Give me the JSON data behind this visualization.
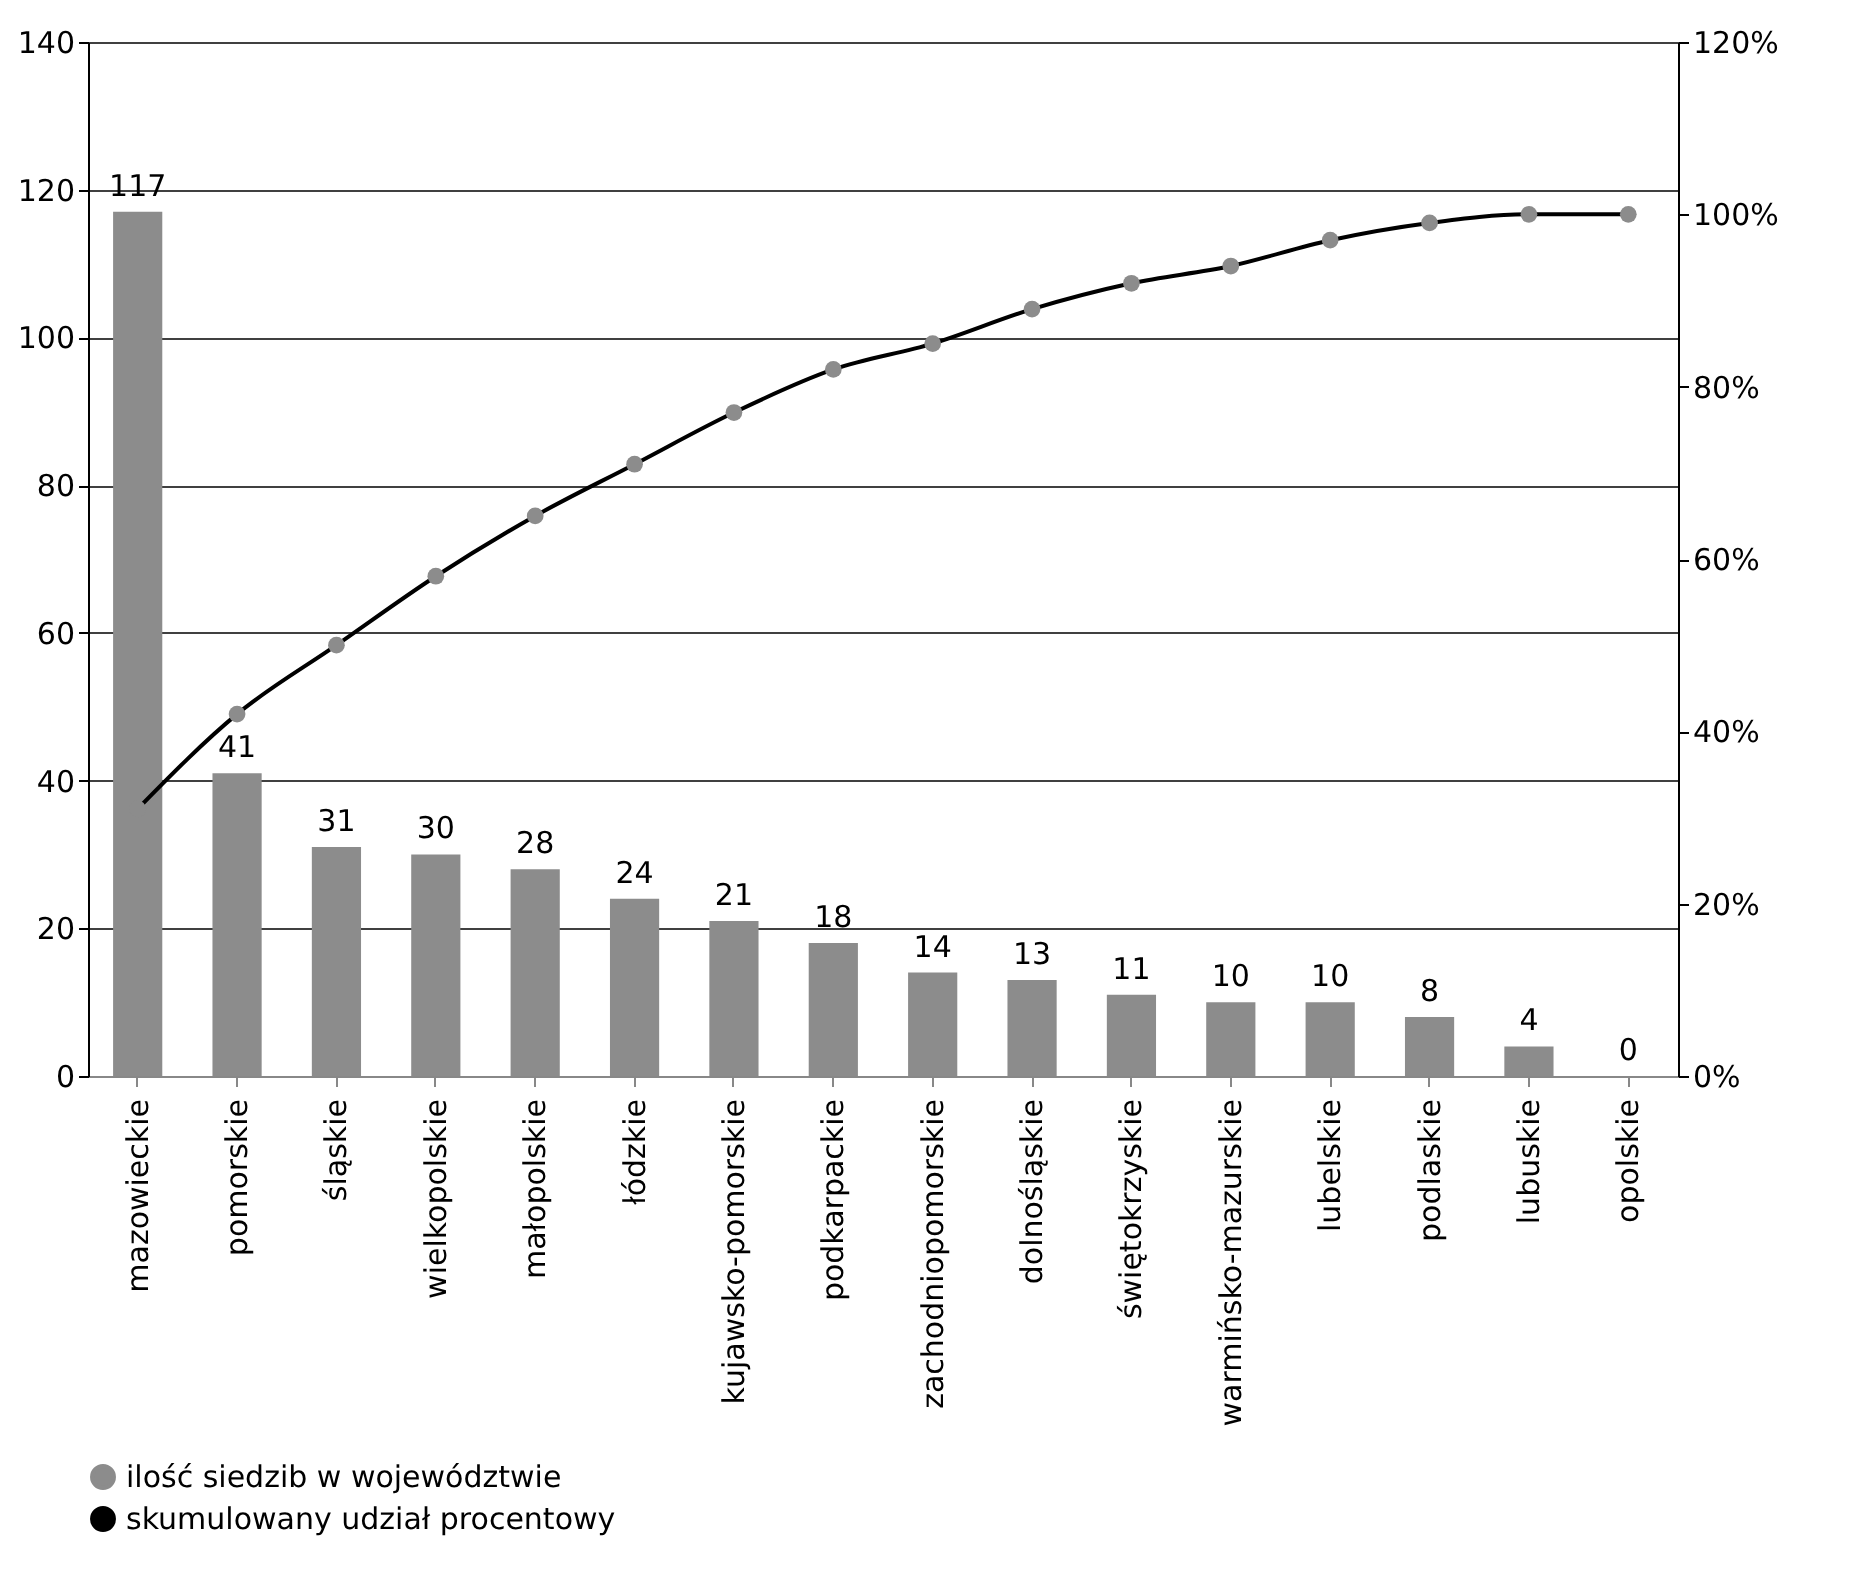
{
  "chart_data": {
    "type": "bar",
    "categories": [
      "mazowieckie",
      "pomorskie",
      "śląskie",
      "wielkopolskie",
      "małopolskie",
      "łódzkie",
      "kujawsko-pomorskie",
      "podkarpackie",
      "zachodniopomorskie",
      "dolnośląskie",
      "świętokrzyskie",
      "warmińsko-mazurskie",
      "lubelskie",
      "podlaskie",
      "lubuskie",
      "opolskie"
    ],
    "series": [
      {
        "name": "ilość siedzib w województwie",
        "color": "#8c8c8c",
        "values": [
          117,
          41,
          31,
          30,
          28,
          24,
          21,
          18,
          14,
          13,
          11,
          10,
          10,
          8,
          4,
          0
        ],
        "value_labels": [
          "117",
          "41",
          "31",
          "30",
          "28",
          "24",
          "21",
          "18",
          "14",
          "13",
          "11",
          "10",
          "10",
          "8",
          "4",
          "0"
        ]
      },
      {
        "name": "skumulowany udział procentowy",
        "type": "line",
        "axis": "y2",
        "color": "#000000",
        "values": [
          31,
          42,
          50,
          58,
          65,
          71,
          77,
          82,
          85,
          89,
          92,
          94,
          97,
          99,
          100,
          100
        ]
      }
    ],
    "ylim": [
      0,
      140
    ],
    "yticks": [
      0,
      20,
      40,
      60,
      80,
      100,
      120,
      140
    ],
    "y2lim": [
      0,
      120
    ],
    "y2ticks": [
      {
        "value": 0,
        "label": "0%"
      },
      {
        "value": 20,
        "label": "20%"
      },
      {
        "value": 40,
        "label": "40%"
      },
      {
        "value": 60,
        "label": "60%"
      },
      {
        "value": 80,
        "label": "80%"
      },
      {
        "value": 100,
        "label": "100%"
      },
      {
        "value": 120,
        "label": "120%"
      }
    ],
    "grid": "y",
    "legend": "bottom left",
    "marker": "circle",
    "line_style": "solid"
  }
}
